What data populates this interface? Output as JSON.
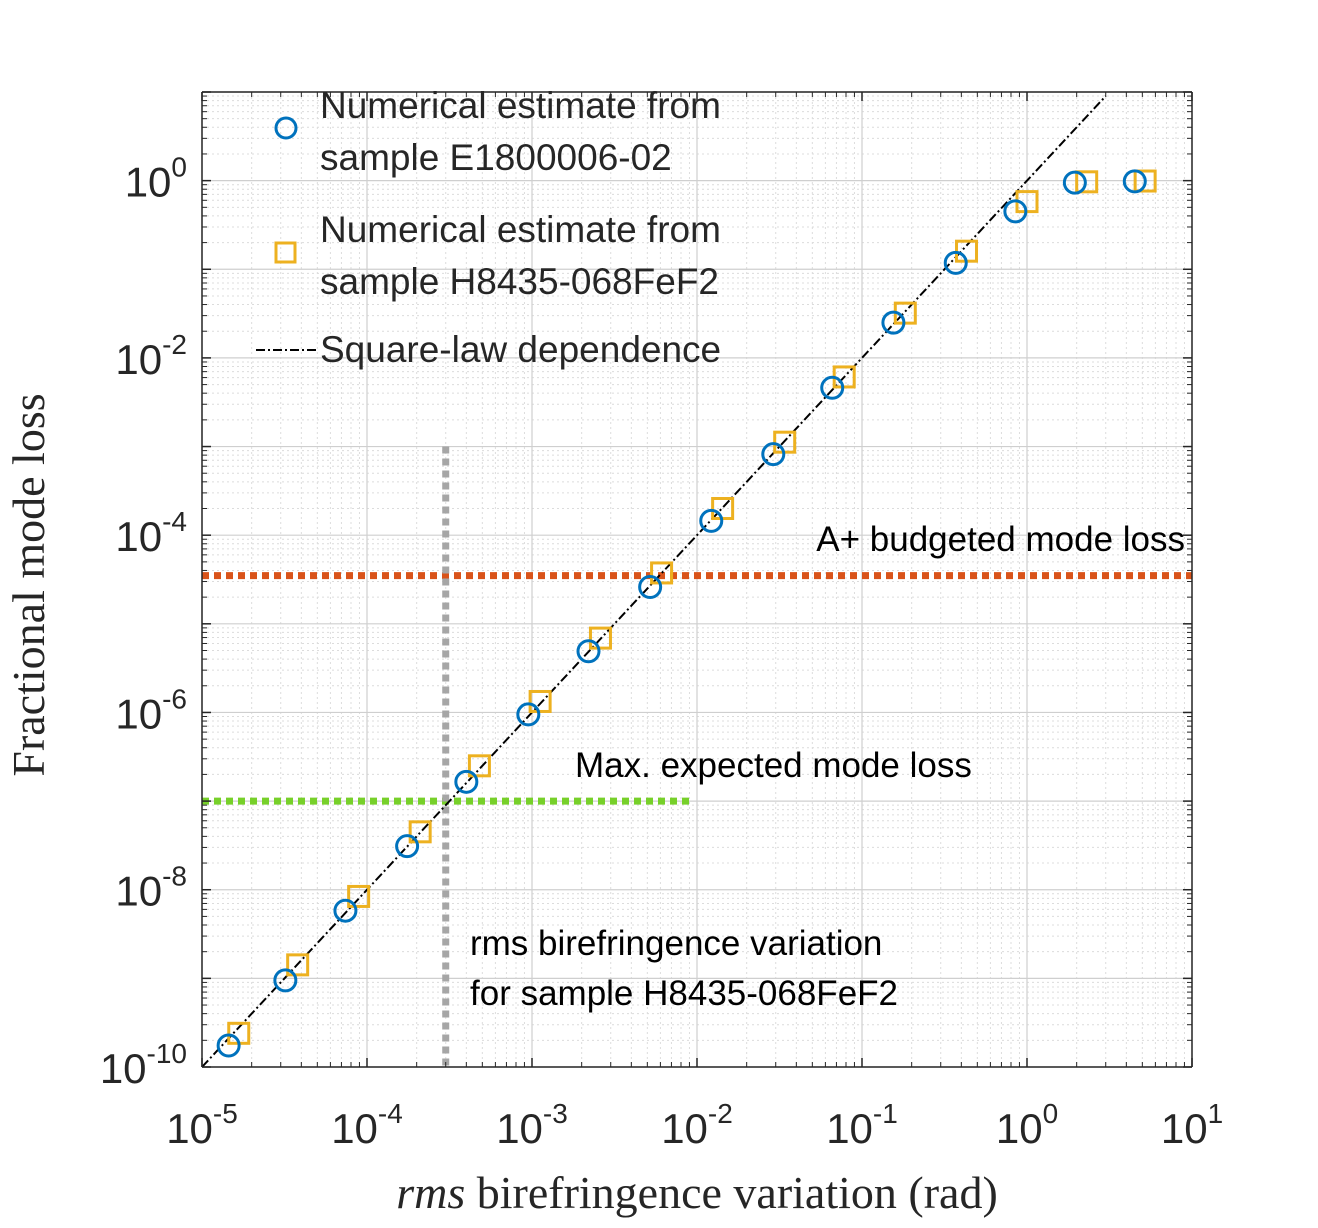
{
  "chart_data": {
    "type": "scatter",
    "xscale": "log",
    "yscale": "log",
    "xlim": [
      1e-05,
      10
    ],
    "ylim": [
      1e-10,
      10
    ],
    "grid": true,
    "minor_grid": true,
    "xlabel_italic": "rms",
    "xlabel_rest": " birefringence variation (rad)",
    "ylabel": "Fractional mode loss",
    "x_ticks": [
      {
        "base": "10",
        "exp": "-5",
        "value": 1e-05
      },
      {
        "base": "10",
        "exp": "-4",
        "value": 0.0001
      },
      {
        "base": "10",
        "exp": "-3",
        "value": 0.001
      },
      {
        "base": "10",
        "exp": "-2",
        "value": 0.01
      },
      {
        "base": "10",
        "exp": "-1",
        "value": 0.1
      },
      {
        "base": "10",
        "exp": "0",
        "value": 1
      },
      {
        "base": "10",
        "exp": "1",
        "value": 10
      }
    ],
    "y_ticks": [
      {
        "base": "10",
        "exp": "-10",
        "value": 1e-10
      },
      {
        "base": "10",
        "exp": "-8",
        "value": 1e-08
      },
      {
        "base": "10",
        "exp": "-6",
        "value": 1e-06
      },
      {
        "base": "10",
        "exp": "-4",
        "value": 0.0001
      },
      {
        "base": "10",
        "exp": "-2",
        "value": 0.01
      },
      {
        "base": "10",
        "exp": "0",
        "value": 1
      }
    ],
    "series": [
      {
        "name": "Numerical estimate from sample E1800006-02",
        "legend_lines": [
          "Numerical estimate from",
          "sample E1800006-02"
        ],
        "marker": "circle",
        "color": "#0072BD",
        "points": [
          [
            1.45e-05,
            1.75e-10
          ],
          [
            3.2e-05,
            9.5e-10
          ],
          [
            7.4e-05,
            5.8e-09
          ],
          [
            0.000175,
            3.1e-08
          ],
          [
            0.0004,
            1.65e-07
          ],
          [
            0.00095,
            9.5e-07
          ],
          [
            0.0022,
            4.9e-06
          ],
          [
            0.0052,
            2.6e-05
          ],
          [
            0.0122,
            0.000145
          ],
          [
            0.029,
            0.00082
          ],
          [
            0.066,
            0.0046
          ],
          [
            0.155,
            0.025
          ],
          [
            0.37,
            0.118
          ],
          [
            0.85,
            0.45
          ],
          [
            1.95,
            0.95
          ],
          [
            4.5,
            0.98
          ]
        ]
      },
      {
        "name": "Numerical estimate from sample H8435-068FeF2",
        "legend_lines": [
          "Numerical estimate from",
          "sample H8435-068FeF2"
        ],
        "marker": "square",
        "color": "#EDB120",
        "points": [
          [
            1.67e-05,
            2.4e-10
          ],
          [
            3.8e-05,
            1.42e-09
          ],
          [
            8.9e-05,
            8.4e-09
          ],
          [
            0.00021,
            4.5e-08
          ],
          [
            0.00048,
            2.5e-07
          ],
          [
            0.00112,
            1.33e-06
          ],
          [
            0.0026,
            6.9e-06
          ],
          [
            0.0061,
            3.75e-05
          ],
          [
            0.0143,
            0.0002
          ],
          [
            0.034,
            0.00112
          ],
          [
            0.078,
            0.0061
          ],
          [
            0.183,
            0.032
          ],
          [
            0.43,
            0.16
          ],
          [
            1.0,
            0.58
          ],
          [
            2.3,
            0.97
          ],
          [
            5.2,
            0.99
          ]
        ]
      },
      {
        "name": "Square-law dependence",
        "legend_lines": [
          "Square-law dependence"
        ],
        "marker": "dash-dot-line",
        "color": "#000000",
        "points": [
          [
            1e-05,
            1e-10
          ],
          [
            3.0,
            9.0
          ]
        ]
      }
    ],
    "reference_lines": [
      {
        "name": "A+ budgeted mode loss",
        "orientation": "horizontal",
        "value": 3.5e-05,
        "x_range": [
          1e-05,
          10
        ],
        "color": "#D95319",
        "label": "A+ budgeted mode loss"
      },
      {
        "name": "Max. expected mode loss",
        "orientation": "horizontal",
        "value": 1e-07,
        "x_range": [
          1e-05,
          0.0095
        ],
        "color": "#77D02A",
        "label": "Max. expected mode loss"
      },
      {
        "name": "rms birefringence variation for sample H8435-068FeF2",
        "orientation": "vertical",
        "value": 0.0003,
        "y_range": [
          1e-10,
          0.001
        ],
        "color": "#A6A6A6",
        "label_lines": [
          "rms birefringence variation",
          "for sample H8435-068FeF2"
        ]
      }
    ],
    "legend_location": "top-left"
  }
}
